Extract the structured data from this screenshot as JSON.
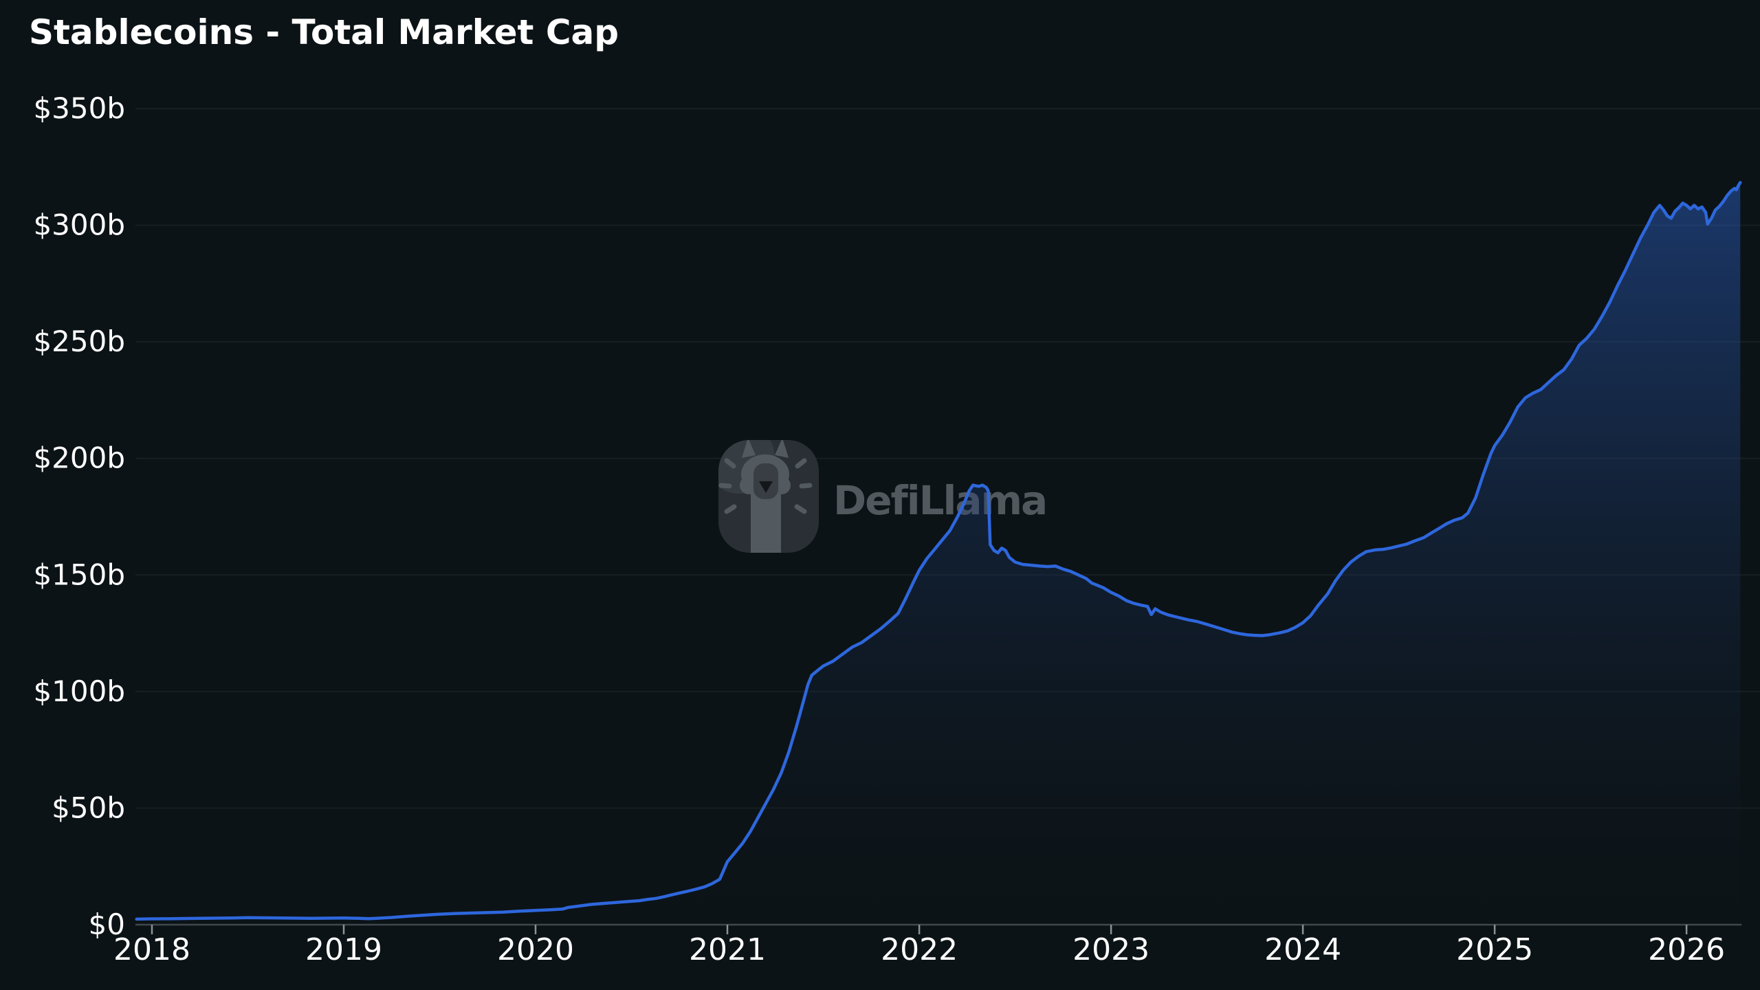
{
  "title": {
    "text": "Stablecoins - Total Market Cap"
  },
  "watermark": {
    "text": "DefiLlama"
  },
  "colors": {
    "background": "#0c1316",
    "line": "#2e67dd",
    "area_top": "#2f6bdf",
    "area_mid": "#1e3c74",
    "area_bottom": "#101826",
    "axis_line": "#3f474d",
    "tick": "#8b9398",
    "grid": "rgba(255,255,255,0.05)",
    "label": "#ffffff",
    "watermark_gray": "#565d62"
  },
  "y_axis": {
    "labels": [
      {
        "text": "$350b",
        "value": 350
      },
      {
        "text": "$300b",
        "value": 300
      },
      {
        "text": "$250b",
        "value": 250
      },
      {
        "text": "$200b",
        "value": 200
      },
      {
        "text": "$150b",
        "value": 150
      },
      {
        "text": "$100b",
        "value": 100
      },
      {
        "text": "$50b",
        "value": 50
      },
      {
        "text": "$0",
        "value": 0
      }
    ]
  },
  "x_axis": {
    "labels": [
      {
        "text": "2018",
        "value": 2018
      },
      {
        "text": "2019",
        "value": 2019
      },
      {
        "text": "2020",
        "value": 2020
      },
      {
        "text": "2021",
        "value": 2021
      },
      {
        "text": "2022",
        "value": 2022
      },
      {
        "text": "2023",
        "value": 2023
      },
      {
        "text": "2024",
        "value": 2024
      },
      {
        "text": "2025",
        "value": 2025
      },
      {
        "text": "2026",
        "value": 2026
      }
    ]
  },
  "chart_data": {
    "type": "area",
    "title": "Stablecoins - Total Market Cap",
    "xlabel": "",
    "ylabel": "",
    "unit": "USD billions",
    "x_unit": "decimal_year",
    "ylim": [
      0,
      350
    ],
    "xlim": [
      2017.914,
      2026.383
    ],
    "grid": "horizontal",
    "legend": "none",
    "notable_points": {
      "peak_2022": [
        2022.28,
        188.5
      ],
      "terra_crash_drop_to": [
        2022.37,
        163
      ],
      "trough_2023": [
        2023.79,
        124
      ],
      "last_value": [
        2026.28,
        318.3
      ]
    },
    "series": [
      {
        "name": "Total Stablecoin Market Cap",
        "color": "#2e67dd",
        "points": [
          [
            2017.92,
            2.4
          ],
          [
            2018.0,
            2.5
          ],
          [
            2018.08,
            2.55
          ],
          [
            2018.17,
            2.65
          ],
          [
            2018.25,
            2.7
          ],
          [
            2018.33,
            2.8
          ],
          [
            2018.42,
            2.9
          ],
          [
            2018.5,
            3.0
          ],
          [
            2018.58,
            2.95
          ],
          [
            2018.67,
            2.85
          ],
          [
            2018.75,
            2.8
          ],
          [
            2018.83,
            2.75
          ],
          [
            2018.92,
            2.8
          ],
          [
            2019.0,
            2.85
          ],
          [
            2019.08,
            2.7
          ],
          [
            2019.13,
            2.6
          ],
          [
            2019.17,
            2.75
          ],
          [
            2019.25,
            3.1
          ],
          [
            2019.33,
            3.6
          ],
          [
            2019.42,
            4.1
          ],
          [
            2019.5,
            4.5
          ],
          [
            2019.58,
            4.8
          ],
          [
            2019.67,
            5.0
          ],
          [
            2019.75,
            5.2
          ],
          [
            2019.83,
            5.4
          ],
          [
            2019.92,
            5.8
          ],
          [
            2020.0,
            6.1
          ],
          [
            2020.08,
            6.4
          ],
          [
            2020.14,
            6.7
          ],
          [
            2020.17,
            7.4
          ],
          [
            2020.21,
            7.8
          ],
          [
            2020.29,
            8.7
          ],
          [
            2020.38,
            9.3
          ],
          [
            2020.46,
            9.8
          ],
          [
            2020.54,
            10.3
          ],
          [
            2020.58,
            10.8
          ],
          [
            2020.63,
            11.3
          ],
          [
            2020.67,
            12.0
          ],
          [
            2020.71,
            12.8
          ],
          [
            2020.75,
            13.6
          ],
          [
            2020.79,
            14.3
          ],
          [
            2020.83,
            15.1
          ],
          [
            2020.88,
            16.2
          ],
          [
            2020.92,
            17.6
          ],
          [
            2020.96,
            19.5
          ],
          [
            2021.0,
            27.0
          ],
          [
            2021.04,
            31
          ],
          [
            2021.08,
            35
          ],
          [
            2021.12,
            40
          ],
          [
            2021.16,
            46
          ],
          [
            2021.2,
            52
          ],
          [
            2021.24,
            58
          ],
          [
            2021.28,
            65
          ],
          [
            2021.32,
            74
          ],
          [
            2021.36,
            85
          ],
          [
            2021.4,
            97
          ],
          [
            2021.42,
            103
          ],
          [
            2021.44,
            107
          ],
          [
            2021.47,
            109
          ],
          [
            2021.5,
            111
          ],
          [
            2021.55,
            113
          ],
          [
            2021.6,
            116
          ],
          [
            2021.65,
            119
          ],
          [
            2021.7,
            121
          ],
          [
            2021.75,
            124
          ],
          [
            2021.8,
            127
          ],
          [
            2021.85,
            130.5
          ],
          [
            2021.89,
            133.5
          ],
          [
            2021.93,
            140
          ],
          [
            2021.97,
            147
          ],
          [
            2022.0,
            152
          ],
          [
            2022.04,
            157
          ],
          [
            2022.08,
            161
          ],
          [
            2022.12,
            165
          ],
          [
            2022.16,
            169
          ],
          [
            2022.2,
            175
          ],
          [
            2022.24,
            182
          ],
          [
            2022.26,
            186
          ],
          [
            2022.28,
            188.5
          ],
          [
            2022.31,
            188
          ],
          [
            2022.33,
            188.5
          ],
          [
            2022.35,
            187.5
          ],
          [
            2022.36,
            186
          ],
          [
            2022.37,
            163
          ],
          [
            2022.39,
            160.5
          ],
          [
            2022.41,
            159.5
          ],
          [
            2022.43,
            161.5
          ],
          [
            2022.45,
            160.5
          ],
          [
            2022.47,
            157.5
          ],
          [
            2022.5,
            155.5
          ],
          [
            2022.54,
            154.5
          ],
          [
            2022.58,
            154.2
          ],
          [
            2022.63,
            153.8
          ],
          [
            2022.67,
            153.6
          ],
          [
            2022.71,
            153.8
          ],
          [
            2022.75,
            152.5
          ],
          [
            2022.79,
            151.5
          ],
          [
            2022.83,
            150
          ],
          [
            2022.87,
            148.5
          ],
          [
            2022.9,
            146.5
          ],
          [
            2022.93,
            145.5
          ],
          [
            2022.96,
            144.5
          ],
          [
            2023.0,
            142.5
          ],
          [
            2023.04,
            141
          ],
          [
            2023.08,
            139
          ],
          [
            2023.12,
            137.8
          ],
          [
            2023.16,
            137
          ],
          [
            2023.19,
            136.5
          ],
          [
            2023.21,
            133
          ],
          [
            2023.23,
            135.5
          ],
          [
            2023.26,
            134
          ],
          [
            2023.3,
            132.8
          ],
          [
            2023.35,
            131.8
          ],
          [
            2023.4,
            130.8
          ],
          [
            2023.45,
            130
          ],
          [
            2023.5,
            128.8
          ],
          [
            2023.54,
            127.8
          ],
          [
            2023.58,
            126.8
          ],
          [
            2023.63,
            125.5
          ],
          [
            2023.67,
            124.8
          ],
          [
            2023.71,
            124.3
          ],
          [
            2023.75,
            124.1
          ],
          [
            2023.79,
            124.0
          ],
          [
            2023.83,
            124.4
          ],
          [
            2023.88,
            125.2
          ],
          [
            2023.92,
            126
          ],
          [
            2023.96,
            127.5
          ],
          [
            2024.0,
            129.5
          ],
          [
            2024.04,
            132.5
          ],
          [
            2024.08,
            137
          ],
          [
            2024.13,
            142
          ],
          [
            2024.17,
            147.5
          ],
          [
            2024.21,
            152
          ],
          [
            2024.25,
            155.5
          ],
          [
            2024.29,
            158
          ],
          [
            2024.33,
            160
          ],
          [
            2024.38,
            160.8
          ],
          [
            2024.42,
            161
          ],
          [
            2024.46,
            161.6
          ],
          [
            2024.5,
            162.4
          ],
          [
            2024.54,
            163.2
          ],
          [
            2024.58,
            164.5
          ],
          [
            2024.63,
            166
          ],
          [
            2024.67,
            168
          ],
          [
            2024.71,
            170
          ],
          [
            2024.75,
            172
          ],
          [
            2024.79,
            173.5
          ],
          [
            2024.83,
            174.5
          ],
          [
            2024.86,
            176.5
          ],
          [
            2024.9,
            183
          ],
          [
            2024.94,
            193
          ],
          [
            2024.98,
            202
          ],
          [
            2025.0,
            205.5
          ],
          [
            2025.04,
            210
          ],
          [
            2025.08,
            215.5
          ],
          [
            2025.12,
            222
          ],
          [
            2025.16,
            226
          ],
          [
            2025.2,
            228
          ],
          [
            2025.24,
            229.5
          ],
          [
            2025.28,
            232.5
          ],
          [
            2025.32,
            235.5
          ],
          [
            2025.36,
            238
          ],
          [
            2025.4,
            242.5
          ],
          [
            2025.44,
            248.5
          ],
          [
            2025.48,
            251.5
          ],
          [
            2025.52,
            255.5
          ],
          [
            2025.56,
            261
          ],
          [
            2025.6,
            267
          ],
          [
            2025.64,
            274
          ],
          [
            2025.68,
            280.5
          ],
          [
            2025.72,
            287.5
          ],
          [
            2025.76,
            294.5
          ],
          [
            2025.8,
            300.5
          ],
          [
            2025.83,
            305.5
          ],
          [
            2025.86,
            308.5
          ],
          [
            2025.88,
            306.5
          ],
          [
            2025.9,
            304
          ],
          [
            2025.92,
            303
          ],
          [
            2025.94,
            306
          ],
          [
            2025.96,
            307.5
          ],
          [
            2025.98,
            309.5
          ],
          [
            2026.0,
            308.5
          ],
          [
            2026.02,
            307
          ],
          [
            2026.04,
            308.5
          ],
          [
            2026.06,
            307
          ],
          [
            2026.08,
            307.8
          ],
          [
            2026.1,
            305.5
          ],
          [
            2026.11,
            300.5
          ],
          [
            2026.13,
            303
          ],
          [
            2026.15,
            306.5
          ],
          [
            2026.17,
            308
          ],
          [
            2026.19,
            310
          ],
          [
            2026.21,
            312.5
          ],
          [
            2026.23,
            314.5
          ],
          [
            2026.25,
            315.8
          ],
          [
            2026.26,
            315.2
          ],
          [
            2026.27,
            317
          ],
          [
            2026.28,
            318.3
          ]
        ]
      }
    ]
  }
}
